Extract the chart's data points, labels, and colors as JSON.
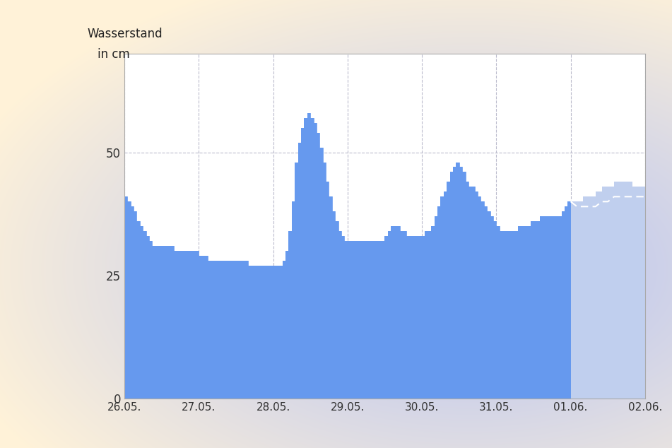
{
  "title": "Wasserstand\n  in cm",
  "xlim_start": 0,
  "xlim_end": 168,
  "ylim": [
    0,
    70
  ],
  "yticks": [
    0,
    25,
    50
  ],
  "xtick_labels": [
    "26.05.",
    "27.05.",
    "28.05.",
    "29.05.",
    "30.05.",
    "31.05.",
    "01.06.",
    "02.06."
  ],
  "xtick_positions": [
    0,
    24,
    48,
    72,
    96,
    120,
    144,
    168
  ],
  "fill_color": "#6699EE",
  "forecast_fill_color": "#C0CFEE",
  "bg_color": "#ffffff",
  "grid_color": "#bbbbcc",
  "forecast_start_x": 144,
  "historical_x": [
    0,
    1,
    2,
    3,
    4,
    5,
    6,
    7,
    8,
    9,
    10,
    11,
    12,
    13,
    14,
    15,
    16,
    17,
    18,
    19,
    20,
    21,
    22,
    23,
    24,
    25,
    26,
    27,
    28,
    29,
    30,
    31,
    32,
    33,
    34,
    35,
    36,
    37,
    38,
    39,
    40,
    41,
    42,
    43,
    44,
    45,
    46,
    47,
    48,
    49,
    50,
    51,
    52,
    53,
    54,
    55,
    56,
    57,
    58,
    59,
    60,
    61,
    62,
    63,
    64,
    65,
    66,
    67,
    68,
    69,
    70,
    71,
    72,
    73,
    74,
    75,
    76,
    77,
    78,
    79,
    80,
    81,
    82,
    83,
    84,
    85,
    86,
    87,
    88,
    89,
    90,
    91,
    92,
    93,
    94,
    95,
    96,
    97,
    98,
    99,
    100,
    101,
    102,
    103,
    104,
    105,
    106,
    107,
    108,
    109,
    110,
    111,
    112,
    113,
    114,
    115,
    116,
    117,
    118,
    119,
    120,
    121,
    122,
    123,
    124,
    125,
    126,
    127,
    128,
    129,
    130,
    131,
    132,
    133,
    134,
    135,
    136,
    137,
    138,
    139,
    140,
    141,
    142,
    143,
    144
  ],
  "historical_y": [
    41,
    40,
    39,
    38,
    36,
    35,
    34,
    33,
    32,
    31,
    31,
    31,
    31,
    31,
    31,
    31,
    30,
    30,
    30,
    30,
    30,
    30,
    30,
    30,
    29,
    29,
    29,
    28,
    28,
    28,
    28,
    28,
    28,
    28,
    28,
    28,
    28,
    28,
    28,
    28,
    27,
    27,
    27,
    27,
    27,
    27,
    27,
    27,
    27,
    27,
    27,
    28,
    30,
    34,
    40,
    48,
    52,
    55,
    57,
    58,
    57,
    56,
    54,
    51,
    48,
    44,
    41,
    38,
    36,
    34,
    33,
    32,
    32,
    32,
    32,
    32,
    32,
    32,
    32,
    32,
    32,
    32,
    32,
    32,
    33,
    34,
    35,
    35,
    35,
    34,
    34,
    33,
    33,
    33,
    33,
    33,
    33,
    34,
    34,
    35,
    37,
    39,
    41,
    42,
    44,
    46,
    47,
    48,
    47,
    46,
    44,
    43,
    43,
    42,
    41,
    40,
    39,
    38,
    37,
    36,
    35,
    34,
    34,
    34,
    34,
    34,
    34,
    35,
    35,
    35,
    35,
    36,
    36,
    36,
    37,
    37,
    37,
    37,
    37,
    37,
    37,
    38,
    39,
    40,
    40
  ],
  "forecast_x": [
    144,
    146,
    148,
    150,
    152,
    154,
    156,
    158,
    160,
    162,
    164,
    166,
    168
  ],
  "forecast_y": [
    40,
    40,
    41,
    41,
    42,
    43,
    43,
    44,
    44,
    44,
    43,
    43,
    42
  ],
  "forecast_upper": [
    40,
    41,
    43,
    44,
    45,
    46,
    46,
    46,
    46,
    46,
    45,
    44,
    43
  ],
  "forecast_lower": [
    40,
    39,
    39,
    39,
    39,
    40,
    40,
    41,
    41,
    41,
    41,
    41,
    41
  ]
}
